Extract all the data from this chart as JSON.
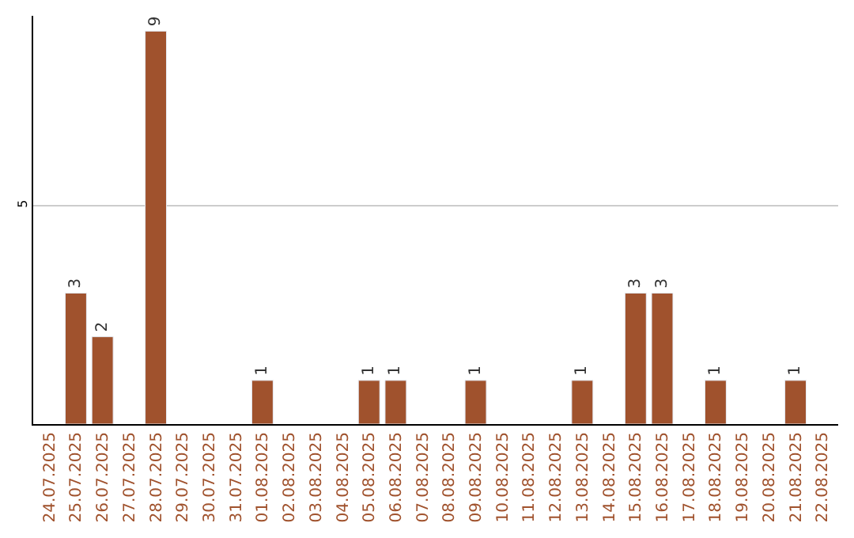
{
  "chart_data": {
    "type": "bar",
    "categories": [
      "24.07.2025",
      "25.07.2025",
      "26.07.2025",
      "27.07.2025",
      "28.07.2025",
      "29.07.2025",
      "30.07.2025",
      "31.07.2025",
      "01.08.2025",
      "02.08.2025",
      "03.08.2025",
      "04.08.2025",
      "05.08.2025",
      "06.08.2025",
      "07.08.2025",
      "08.08.2025",
      "09.08.2025",
      "10.08.2025",
      "11.08.2025",
      "12.08.2025",
      "13.08.2025",
      "14.08.2025",
      "15.08.2025",
      "16.08.2025",
      "17.08.2025",
      "18.08.2025",
      "19.08.2025",
      "20.08.2025",
      "21.08.2025",
      "22.08.2025"
    ],
    "values": [
      null,
      3,
      2,
      null,
      9,
      null,
      null,
      null,
      1,
      null,
      null,
      null,
      1,
      1,
      null,
      null,
      1,
      null,
      null,
      null,
      1,
      null,
      3,
      3,
      null,
      1,
      null,
      null,
      1,
      null
    ],
    "value_labels": [
      null,
      "3",
      "2",
      null,
      "9",
      null,
      null,
      null,
      "1",
      null,
      null,
      null,
      "1",
      "1",
      null,
      null,
      "1",
      null,
      null,
      null,
      "1",
      null,
      "3",
      "3",
      null,
      "1",
      null,
      null,
      "1",
      null
    ],
    "color": "#a0522d",
    "ylim": [
      0,
      9.35
    ],
    "yticks": [
      5
    ],
    "grid": "y",
    "legend": false
  }
}
